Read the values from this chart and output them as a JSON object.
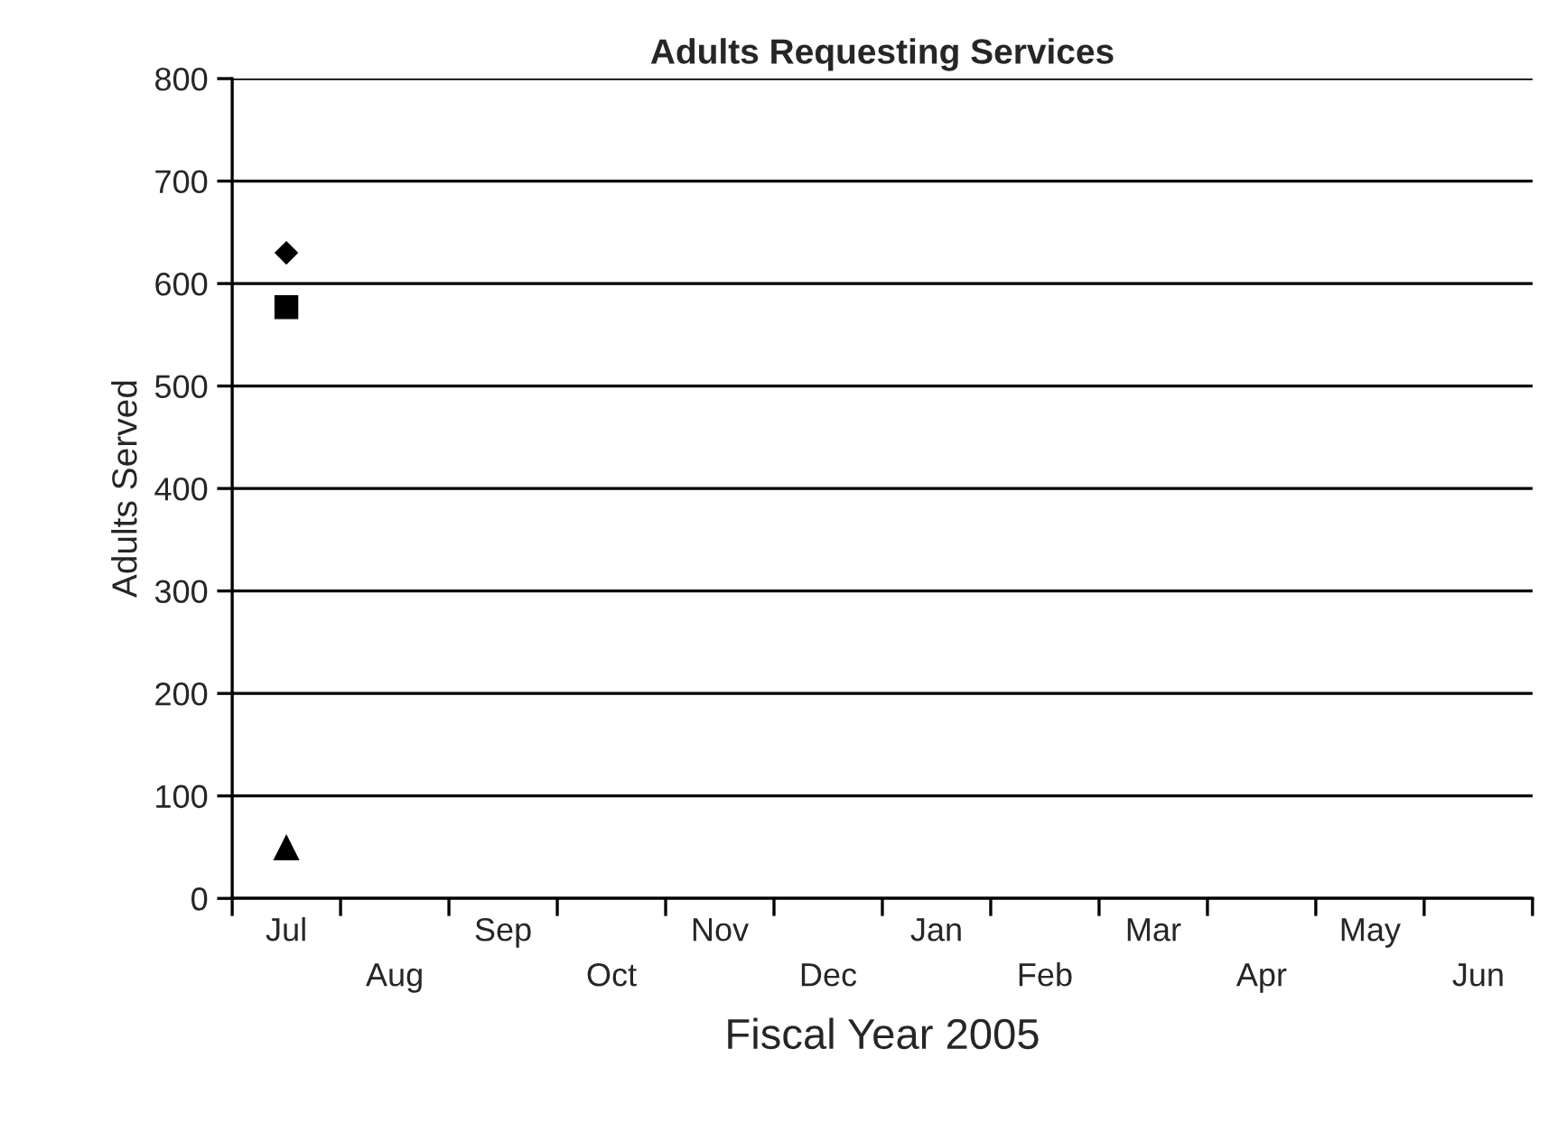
{
  "chart_data": {
    "type": "scatter",
    "title": "Adults Requesting Services",
    "xlabel": "Fiscal Year 2005",
    "ylabel": "Adults Served",
    "categories": [
      "Jul",
      "Aug",
      "Sep",
      "Oct",
      "Nov",
      "Dec",
      "Jan",
      "Feb",
      "Mar",
      "Apr",
      "May",
      "Jun"
    ],
    "series": [
      {
        "color": "#000000",
        "marker": "diamond",
        "values": [
          630,
          null,
          null,
          null,
          null,
          null,
          null,
          null,
          null,
          null,
          null,
          null
        ]
      },
      {
        "color": "#000000",
        "marker": "square",
        "values": [
          577,
          null,
          null,
          null,
          null,
          null,
          null,
          null,
          null,
          null,
          null,
          null
        ]
      },
      {
        "color": "#000000",
        "marker": "triangle",
        "values": [
          50,
          null,
          null,
          null,
          null,
          null,
          null,
          null,
          null,
          null,
          null,
          null
        ]
      }
    ],
    "ylim": [
      0,
      800
    ],
    "yticks": [
      0,
      100,
      200,
      300,
      400,
      500,
      600,
      700,
      800
    ],
    "grid": "y",
    "legend": false
  }
}
